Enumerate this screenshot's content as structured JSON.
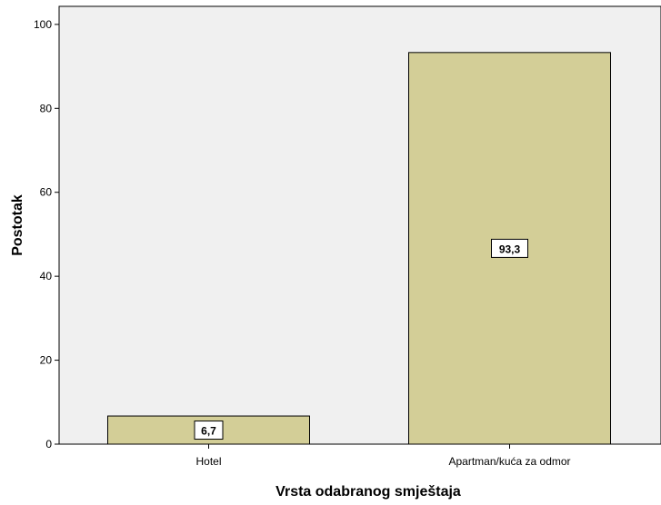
{
  "chart_data": {
    "type": "bar",
    "categories": [
      "Hotel",
      "Apartman/kuća za odmor"
    ],
    "values": [
      6.7,
      93.3
    ],
    "value_labels": [
      "6,7",
      "93,3"
    ],
    "xlabel": "Vrsta odabranog smještaja",
    "ylabel": "Postotak",
    "ylim": [
      0,
      104.3
    ],
    "yticks": [
      0,
      20,
      40,
      60,
      80,
      100
    ],
    "ytick_labels": [
      "0",
      "20",
      "40",
      "60",
      "80",
      "100"
    ],
    "grid": false,
    "legend": "none"
  },
  "colors": {
    "plot_background": "#f0f0f0",
    "bar_fill": "#d3ce97",
    "bar_stroke": "#000000",
    "label_box_fill": "#ffffff"
  }
}
